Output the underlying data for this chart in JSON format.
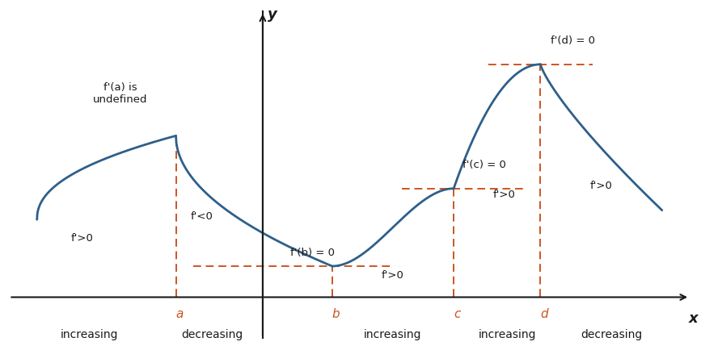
{
  "bg_color": "#ffffff",
  "curve_color": "#2e5f8a",
  "dashed_color": "#cc5522",
  "curve_linewidth": 2.0,
  "dashed_linewidth": 1.4,
  "x_a": -4.5,
  "x_b": 0.0,
  "x_c": 3.5,
  "x_d": 6.0,
  "y_a": 5.2,
  "y_b": 1.0,
  "y_c": 3.5,
  "y_d": 7.5,
  "y_start": 2.5,
  "x_start": -8.5,
  "x_end": 9.5,
  "y_end": 2.8,
  "x_yaxis": -2.0,
  "xlim": [
    -9.5,
    10.5
  ],
  "ylim": [
    -1.5,
    9.5
  ]
}
